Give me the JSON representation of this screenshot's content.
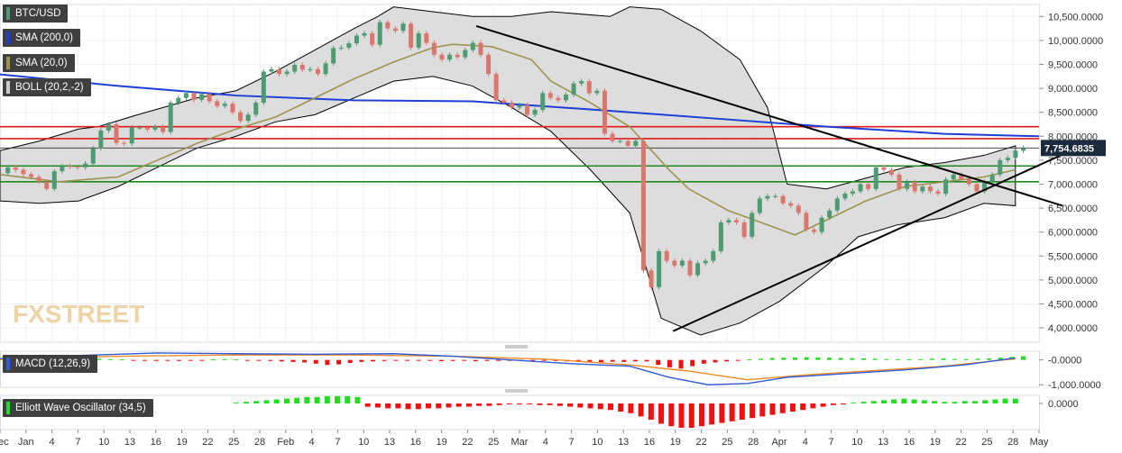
{
  "legend": {
    "symbol": "BTC/USD",
    "sma200": "SMA (200,0)",
    "sma20": "SMA (20,0)",
    "boll": "BOLL (20,2,-2)",
    "macd": "MACD (12,26,9)",
    "ewo": "Elliott Wave Oscillator (34,5)"
  },
  "watermark": "FXSTREET",
  "colors": {
    "sma200": "#1e3fd6",
    "sma20": "#9c9251",
    "boll_fill": "#d9d9d9",
    "bull": "#4e9a72",
    "bear": "#d9776d",
    "resistance": "#e3191b",
    "support": "#1c8a1c",
    "trendline": "#000000",
    "macd_line": "#2f5bd9",
    "signal_line": "#f08a24",
    "hist_pos": "#22dd22",
    "hist_neg": "#ee1111",
    "price_tag": "#1b2a3c"
  },
  "chart_data": [
    {
      "type": "candlestick",
      "symbol": "BTC/USD",
      "last_price": "7,754.6835",
      "ylim": [
        3700000,
        10750000
      ],
      "y_ticks": [
        "10,500.0000",
        "10,000.0000",
        "9,500.0000",
        "9,000.0000",
        "8,500.0000",
        "8,000.0000",
        "7,500.0000",
        "7,000.0000",
        "6,500.0000",
        "6,000.0000",
        "5,500.0000",
        "5,000.0000",
        "4,500.0000",
        "4,000.0000"
      ],
      "x_ticks": [
        "Dec",
        "Jan",
        "4",
        "7",
        "10",
        "13",
        "16",
        "19",
        "22",
        "25",
        "28",
        "Feb",
        "4",
        "7",
        "10",
        "13",
        "16",
        "19",
        "22",
        "25",
        "Mar",
        "4",
        "7",
        "10",
        "13",
        "16",
        "19",
        "22",
        "25",
        "28",
        "Apr",
        "4",
        "7",
        "10",
        "13",
        "16",
        "19",
        "22",
        "25",
        "28",
        "May"
      ],
      "horizontal_levels": {
        "resistance": [
          8200000,
          7950000
        ],
        "support": [
          7380000,
          7050000
        ],
        "reference": [
          7754683
        ]
      },
      "trendlines": [
        {
          "from": [
            "Feb 19",
            10300000
          ],
          "to": [
            "May 3",
            6550000
          ]
        },
        {
          "from": [
            "Mar 13",
            3930000
          ],
          "to": [
            "May 3",
            7620000
          ]
        }
      ],
      "sma200": [
        [
          0,
          9290000
        ],
        [
          30,
          9050000
        ],
        [
          60,
          8850000
        ],
        [
          90,
          8750000
        ],
        [
          120,
          8730000
        ],
        [
          150,
          8560000
        ],
        [
          180,
          8380000
        ],
        [
          210,
          8200000
        ],
        [
          240,
          8050000
        ],
        [
          264,
          8000000
        ]
      ],
      "sma20": [
        [
          0,
          7200000
        ],
        [
          15,
          7050000
        ],
        [
          30,
          7150000
        ],
        [
          40,
          7500000
        ],
        [
          50,
          7850000
        ],
        [
          60,
          8150000
        ],
        [
          70,
          8400000
        ],
        [
          80,
          8800000
        ],
        [
          90,
          9200000
        ],
        [
          100,
          9550000
        ],
        [
          110,
          9850000
        ],
        [
          115,
          9920000
        ],
        [
          125,
          9870000
        ],
        [
          135,
          9600000
        ],
        [
          140,
          9150000
        ],
        [
          150,
          8700000
        ],
        [
          160,
          8200000
        ],
        [
          170,
          7300000
        ],
        [
          175,
          6900000
        ],
        [
          185,
          6450000
        ],
        [
          195,
          6150000
        ],
        [
          202,
          5940000
        ],
        [
          210,
          6250000
        ],
        [
          220,
          6650000
        ],
        [
          230,
          6950000
        ],
        [
          240,
          7050000
        ],
        [
          250,
          7150000
        ],
        [
          258,
          7300000
        ]
      ],
      "bollinger_upper": [
        [
          0,
          7700000
        ],
        [
          10,
          7900000
        ],
        [
          20,
          8150000
        ],
        [
          25,
          8200000
        ],
        [
          35,
          8450000
        ],
        [
          50,
          8800000
        ],
        [
          60,
          8950000
        ],
        [
          70,
          9350000
        ],
        [
          80,
          9800000
        ],
        [
          90,
          10250000
        ],
        [
          96,
          10500000
        ],
        [
          100,
          10700000
        ],
        [
          110,
          10600000
        ],
        [
          120,
          10500000
        ],
        [
          130,
          10500000
        ],
        [
          140,
          10600000
        ],
        [
          155,
          10500000
        ],
        [
          160,
          10700000
        ],
        [
          168,
          10650000
        ],
        [
          178,
          10200000
        ],
        [
          188,
          9600000
        ],
        [
          195,
          8600000
        ],
        [
          200,
          7000000
        ],
        [
          210,
          6900000
        ],
        [
          230,
          7350000
        ],
        [
          240,
          7450000
        ],
        [
          250,
          7600000
        ],
        [
          258,
          7800000
        ]
      ],
      "bollinger_lower": [
        [
          0,
          6650000
        ],
        [
          10,
          6600000
        ],
        [
          20,
          6650000
        ],
        [
          30,
          6950000
        ],
        [
          40,
          7350000
        ],
        [
          50,
          7750000
        ],
        [
          60,
          8000000
        ],
        [
          70,
          8300000
        ],
        [
          80,
          8450000
        ],
        [
          90,
          8800000
        ],
        [
          100,
          9150000
        ],
        [
          110,
          9250000
        ],
        [
          120,
          9050000
        ],
        [
          130,
          8600000
        ],
        [
          140,
          8100000
        ],
        [
          150,
          7300000
        ],
        [
          160,
          6400000
        ],
        [
          168,
          4200000
        ],
        [
          178,
          3850000
        ],
        [
          188,
          4100000
        ],
        [
          198,
          4550000
        ],
        [
          210,
          5300000
        ],
        [
          218,
          5900000
        ],
        [
          228,
          6150000
        ],
        [
          240,
          6300000
        ],
        [
          250,
          6600000
        ],
        [
          258,
          6550000
        ]
      ],
      "candles": [
        [
          7230000,
          7350000
        ],
        [
          7350000,
          7300000
        ],
        [
          7300000,
          7210000
        ],
        [
          7210000,
          7150000
        ],
        [
          7150000,
          7050000
        ],
        [
          7050000,
          6900000
        ],
        [
          6900000,
          7270000
        ],
        [
          7270000,
          7380000
        ],
        [
          7380000,
          7360000
        ],
        [
          7360000,
          7350000
        ],
        [
          7350000,
          7430000
        ],
        [
          7430000,
          7750000
        ],
        [
          7750000,
          8120000
        ],
        [
          8120000,
          8250000
        ],
        [
          8250000,
          7860000
        ],
        [
          7860000,
          7850000
        ],
        [
          7850000,
          8180000
        ],
        [
          8180000,
          8180000
        ],
        [
          8180000,
          8140000
        ],
        [
          8140000,
          8200000
        ],
        [
          8200000,
          8090000
        ],
        [
          8090000,
          8700000
        ],
        [
          8700000,
          8800000
        ],
        [
          8800000,
          8900000
        ],
        [
          8900000,
          8760000
        ],
        [
          8760000,
          8880000
        ],
        [
          8880000,
          8730000
        ],
        [
          8730000,
          8630000
        ],
        [
          8630000,
          8680000
        ],
        [
          8680000,
          8500000
        ],
        [
          8500000,
          8320000
        ],
        [
          8320000,
          8450000
        ],
        [
          8450000,
          8700000
        ],
        [
          8700000,
          9350000
        ],
        [
          9350000,
          9400000
        ],
        [
          9400000,
          9300000
        ],
        [
          9300000,
          9350000
        ],
        [
          9350000,
          9490000
        ],
        [
          9490000,
          9390000
        ],
        [
          9390000,
          9400000
        ],
        [
          9400000,
          9300000
        ],
        [
          9300000,
          9520000
        ],
        [
          9520000,
          9840000
        ],
        [
          9840000,
          9850000
        ],
        [
          9850000,
          9940000
        ],
        [
          9940000,
          10100000
        ],
        [
          10100000,
          10150000
        ],
        [
          10150000,
          9910000
        ],
        [
          9910000,
          10380000
        ],
        [
          10380000,
          10250000
        ],
        [
          10250000,
          10200000
        ],
        [
          10200000,
          10350000
        ],
        [
          10350000,
          9850000
        ],
        [
          9850000,
          10150000
        ],
        [
          10150000,
          9950000
        ],
        [
          9950000,
          9700000
        ],
        [
          9700000,
          9600000
        ],
        [
          9600000,
          9700000
        ],
        [
          9700000,
          9650000
        ],
        [
          9650000,
          9800000
        ],
        [
          9800000,
          9950000
        ],
        [
          9950000,
          9700000
        ],
        [
          9700000,
          9300000
        ],
        [
          9300000,
          8750000
        ],
        [
          8750000,
          8700000
        ],
        [
          8700000,
          8600000
        ],
        [
          8600000,
          8650000
        ],
        [
          8650000,
          8450000
        ],
        [
          8450000,
          8550000
        ],
        [
          8550000,
          8900000
        ],
        [
          8900000,
          8800000
        ],
        [
          8800000,
          8750000
        ],
        [
          8750000,
          8870000
        ],
        [
          8870000,
          9100000
        ],
        [
          9100000,
          9150000
        ],
        [
          9150000,
          8900000
        ],
        [
          8900000,
          8950000
        ],
        [
          8950000,
          8050000
        ],
        [
          8050000,
          7900000
        ],
        [
          7900000,
          7900000
        ],
        [
          7900000,
          7800000
        ],
        [
          7800000,
          7900000
        ],
        [
          7900000,
          5200000
        ],
        [
          5200000,
          4850000
        ],
        [
          4850000,
          5600000
        ],
        [
          5600000,
          5400000
        ],
        [
          5400000,
          5300000
        ],
        [
          5300000,
          5400000
        ],
        [
          5400000,
          5100000
        ],
        [
          5100000,
          5350000
        ],
        [
          5350000,
          5400000
        ],
        [
          5400000,
          5600000
        ],
        [
          5600000,
          6200000
        ],
        [
          6200000,
          6250000
        ],
        [
          6250000,
          6200000
        ],
        [
          6200000,
          5900000
        ],
        [
          5900000,
          6400000
        ],
        [
          6400000,
          6700000
        ],
        [
          6700000,
          6750000
        ],
        [
          6750000,
          6750000
        ],
        [
          6750000,
          6600000
        ],
        [
          6600000,
          6550000
        ],
        [
          6550000,
          6400000
        ],
        [
          6400000,
          6050000
        ],
        [
          6050000,
          6000000
        ],
        [
          6000000,
          6300000
        ],
        [
          6300000,
          6450000
        ],
        [
          6450000,
          6700000
        ],
        [
          6700000,
          6800000
        ],
        [
          6800000,
          6850000
        ],
        [
          6850000,
          7000000
        ],
        [
          7000000,
          6900000
        ],
        [
          6900000,
          7350000
        ],
        [
          7350000,
          7300000
        ],
        [
          7300000,
          7200000
        ],
        [
          7200000,
          6900000
        ],
        [
          6900000,
          7050000
        ],
        [
          7050000,
          6850000
        ],
        [
          6850000,
          6950000
        ],
        [
          6950000,
          6850000
        ],
        [
          6850000,
          6800000
        ],
        [
          6800000,
          7100000
        ],
        [
          7100000,
          7200000
        ],
        [
          7200000,
          7100000
        ],
        [
          7100000,
          7000000
        ],
        [
          7000000,
          6850000
        ],
        [
          6850000,
          7050000
        ],
        [
          7050000,
          7200000
        ],
        [
          7200000,
          7500000
        ],
        [
          7500000,
          7550000
        ],
        [
          7550000,
          7700000
        ],
        [
          7700000,
          7754683
        ]
      ]
    },
    {
      "type": "line",
      "name": "MACD (12,26,9)",
      "y_ticks": [
        "-0.0000",
        "-1,000.0000"
      ],
      "ylim": [
        -1100000,
        350000
      ],
      "macd": [
        [
          0,
          50000
        ],
        [
          20,
          180000
        ],
        [
          40,
          280000
        ],
        [
          60,
          250000
        ],
        [
          80,
          230000
        ],
        [
          100,
          250000
        ],
        [
          115,
          150000
        ],
        [
          130,
          0
        ],
        [
          145,
          -150000
        ],
        [
          160,
          -250000
        ],
        [
          170,
          -700000
        ],
        [
          180,
          -1000000
        ],
        [
          190,
          -950000
        ],
        [
          200,
          -700000
        ],
        [
          215,
          -550000
        ],
        [
          230,
          -400000
        ],
        [
          245,
          -200000
        ],
        [
          258,
          80000
        ]
      ],
      "signal": [
        [
          0,
          20000
        ],
        [
          30,
          150000
        ],
        [
          60,
          200000
        ],
        [
          90,
          200000
        ],
        [
          115,
          150000
        ],
        [
          140,
          20000
        ],
        [
          160,
          -200000
        ],
        [
          175,
          -450000
        ],
        [
          190,
          -800000
        ],
        [
          205,
          -600000
        ],
        [
          220,
          -450000
        ],
        [
          240,
          -250000
        ],
        [
          258,
          50000
        ]
      ],
      "histogram": [
        -80000,
        -60000,
        -50000,
        60000,
        80000,
        90000,
        80000,
        70000,
        50000,
        30000,
        20000,
        -20000,
        -30000,
        -40000,
        -30000,
        -40000,
        -20000,
        -10000,
        20000,
        30000,
        20000,
        -10000,
        -20000,
        -40000,
        -60000,
        -80000,
        -100000,
        -150000,
        -200000,
        -180000,
        -120000,
        -80000,
        -60000,
        -40000,
        -30000,
        -20000,
        -10000,
        -30000,
        -50000,
        -40000,
        -30000,
        -50000,
        -40000,
        -30000,
        -20000,
        -10000,
        -5000,
        -30000,
        -40000,
        -60000,
        -70000,
        -80000,
        -90000,
        -70000,
        -80000,
        -60000,
        -60000,
        -200000,
        -300000,
        -350000,
        -250000,
        -150000,
        -100000,
        -60000,
        -30000,
        20000,
        50000,
        80000,
        90000,
        100000,
        110000,
        100000,
        90000,
        80000,
        70000,
        60000,
        50000,
        40000,
        30000,
        20000,
        30000,
        50000,
        60000,
        40000,
        30000,
        50000,
        60000,
        90000,
        120000,
        150000
      ]
    },
    {
      "type": "bar",
      "name": "Elliott Wave Oscillator (34,5)",
      "y_ticks": [
        "0.0000"
      ],
      "histogram": [
        1,
        2,
        3,
        4,
        5,
        6,
        7,
        8,
        8,
        9,
        9,
        9,
        8,
        -4,
        -5,
        -6,
        -6,
        -7,
        -7,
        -6,
        -6,
        -5,
        -4,
        -4,
        -3,
        -3,
        -2,
        -1,
        -1,
        -1,
        -2,
        -2,
        -3,
        -4,
        -5,
        -6,
        -7,
        -8,
        -10,
        -12,
        -16,
        -20,
        -25,
        -28,
        -30,
        -30,
        -28,
        -26,
        -24,
        -22,
        -20,
        -18,
        -16,
        -14,
        -12,
        -10,
        -8,
        -6,
        -4,
        -2,
        -1,
        1,
        2,
        3,
        4,
        5,
        6,
        5,
        4,
        3,
        2,
        2,
        3,
        3,
        4,
        5,
        6,
        6
      ]
    }
  ]
}
